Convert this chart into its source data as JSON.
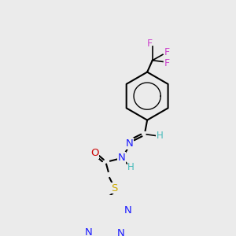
{
  "bg_color": "#ebebeb",
  "figsize": [
    3.0,
    3.0
  ],
  "dpi": 100,
  "atom_colors": {
    "C": "black",
    "N": "#1a1aff",
    "O": "#cc0000",
    "S": "#ccaa00",
    "F": "#cc44cc",
    "H_label": "#44bbbb"
  },
  "bond_lw": 1.5,
  "ring_lw": 1.5,
  "font_size_atom": 8.5,
  "font_size_small": 7.5
}
